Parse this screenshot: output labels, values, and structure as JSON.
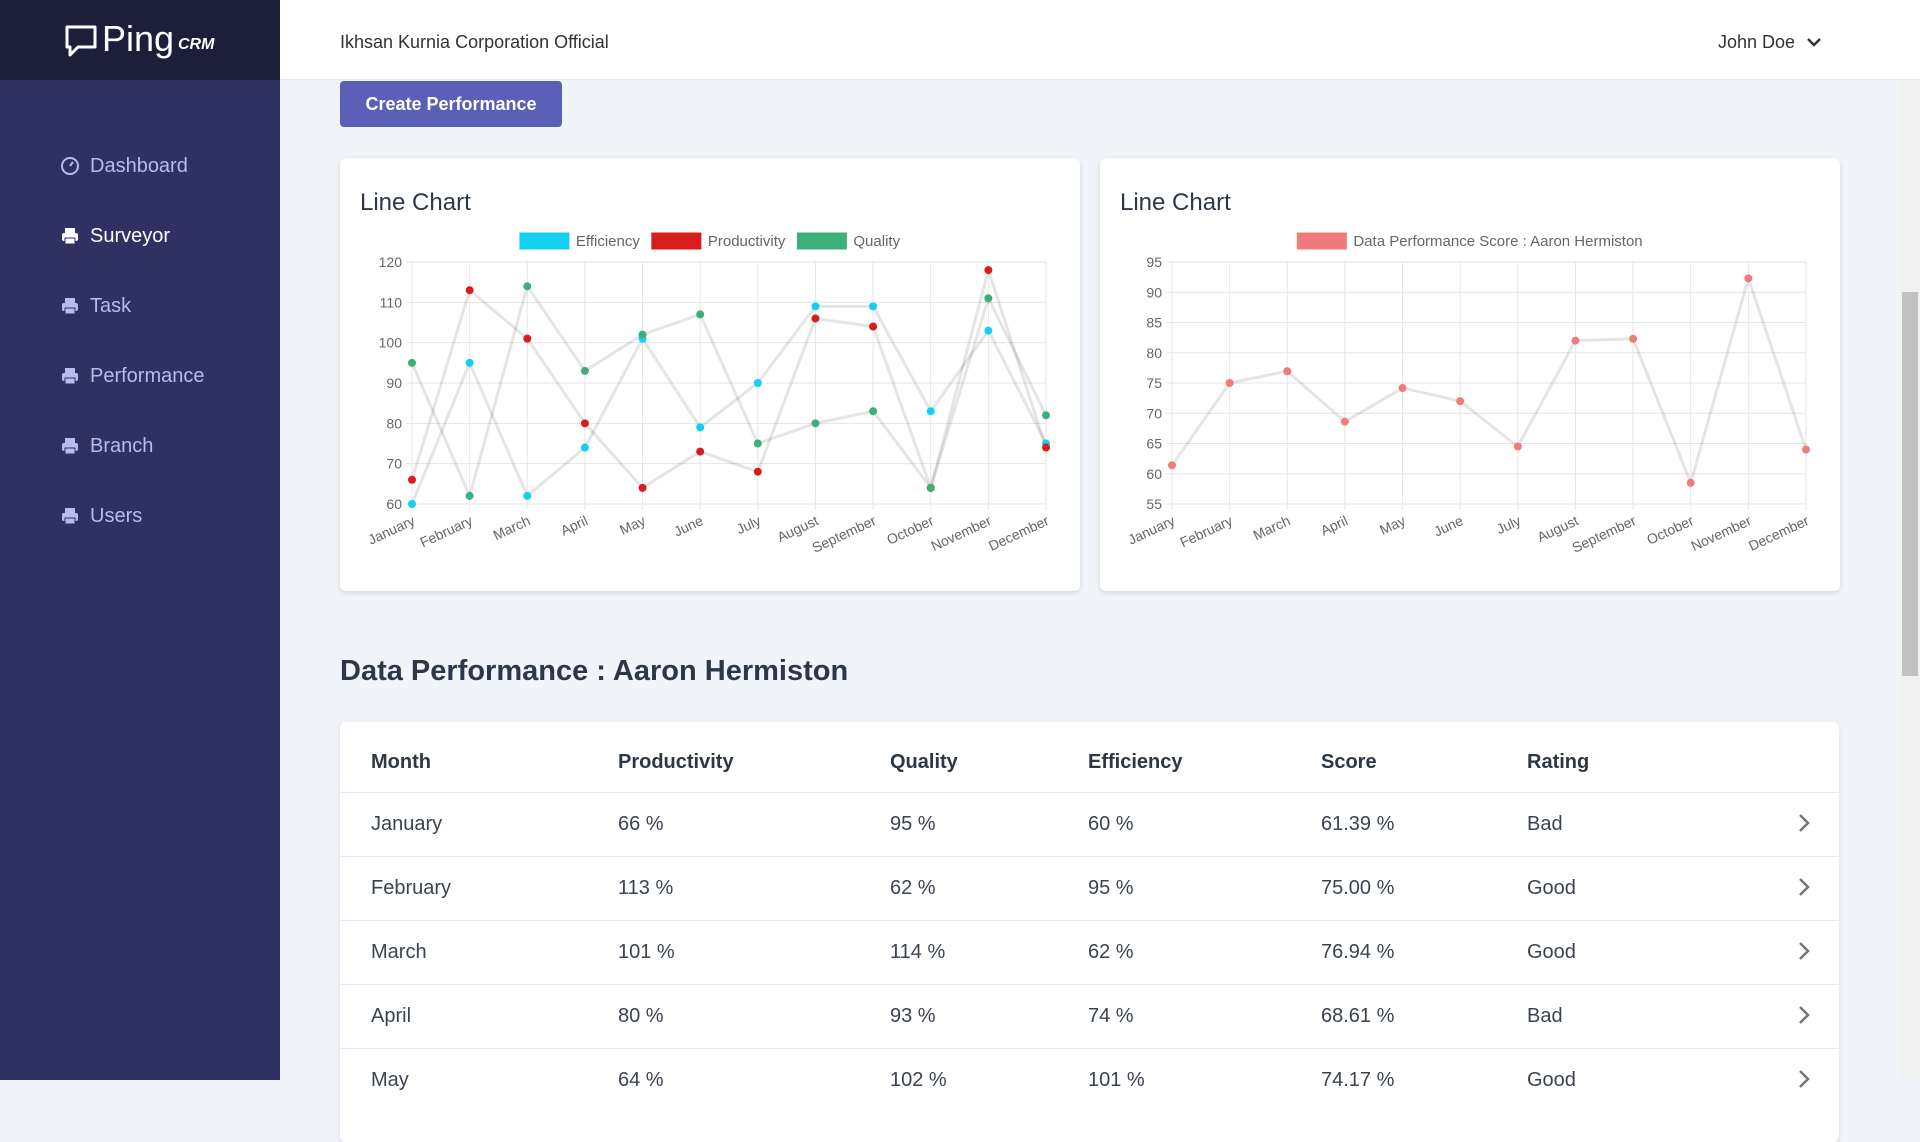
{
  "brand": {
    "name": "Ping",
    "suffix": "CRM"
  },
  "header": {
    "company": "Ikhsan Kurnia Corporation Official",
    "user": "John Doe"
  },
  "sidebar": {
    "items": [
      "Dashboard",
      "Surveyor",
      "Task",
      "Performance",
      "Branch",
      "Users"
    ]
  },
  "button": "Create Performance",
  "chart_data": [
    {
      "type": "line",
      "title": "Line Chart",
      "categories": [
        "January",
        "February",
        "March",
        "April",
        "May",
        "June",
        "July",
        "August",
        "September",
        "October",
        "November",
        "December"
      ],
      "series": [
        {
          "name": "Efficiency",
          "color": "#14d0f0",
          "values": [
            60,
            95,
            62,
            74,
            101,
            79,
            90,
            109,
            109,
            83,
            103,
            75
          ]
        },
        {
          "name": "Productivity",
          "color": "#d91c1c",
          "values": [
            66,
            113,
            101,
            80,
            64,
            73,
            68,
            106,
            104,
            64,
            118,
            74
          ]
        },
        {
          "name": "Quality",
          "color": "#3daf7a",
          "values": [
            95,
            62,
            114,
            93,
            102,
            107,
            75,
            80,
            83,
            64,
            111,
            82
          ]
        }
      ],
      "ylim": [
        60,
        120
      ],
      "yticks": [
        60,
        70,
        80,
        90,
        100,
        110,
        120
      ],
      "grid": true
    },
    {
      "type": "line",
      "title": "Line Chart",
      "categories": [
        "January",
        "February",
        "March",
        "April",
        "May",
        "June",
        "July",
        "August",
        "September",
        "October",
        "November",
        "December"
      ],
      "series": [
        {
          "name": "Data Performance Score : Aaron Hermiston",
          "color": "#f07b7b",
          "values": [
            61.39,
            75.0,
            76.94,
            68.61,
            74.17,
            72,
            64.5,
            82,
            82.3,
            58.5,
            92.3,
            64
          ]
        }
      ],
      "ylim": [
        55,
        95
      ],
      "yticks": [
        55,
        60,
        65,
        70,
        75,
        80,
        85,
        90,
        95
      ],
      "grid": true
    }
  ],
  "section_title": "Data Performance : Aaron Hermiston",
  "table": {
    "headers": [
      "Month",
      "Productivity",
      "Quality",
      "Efficiency",
      "Score",
      "Rating"
    ],
    "rows": [
      [
        "January",
        "66 %",
        "95 %",
        "60 %",
        "61.39 %",
        "Bad"
      ],
      [
        "February",
        "113 %",
        "62 %",
        "95 %",
        "75.00 %",
        "Good"
      ],
      [
        "March",
        "101 %",
        "114 %",
        "62 %",
        "76.94 %",
        "Good"
      ],
      [
        "April",
        "80 %",
        "93 %",
        "74 %",
        "68.61 %",
        "Bad"
      ],
      [
        "May",
        "64 %",
        "102 %",
        "101 %",
        "74.17 %",
        "Good"
      ]
    ]
  }
}
